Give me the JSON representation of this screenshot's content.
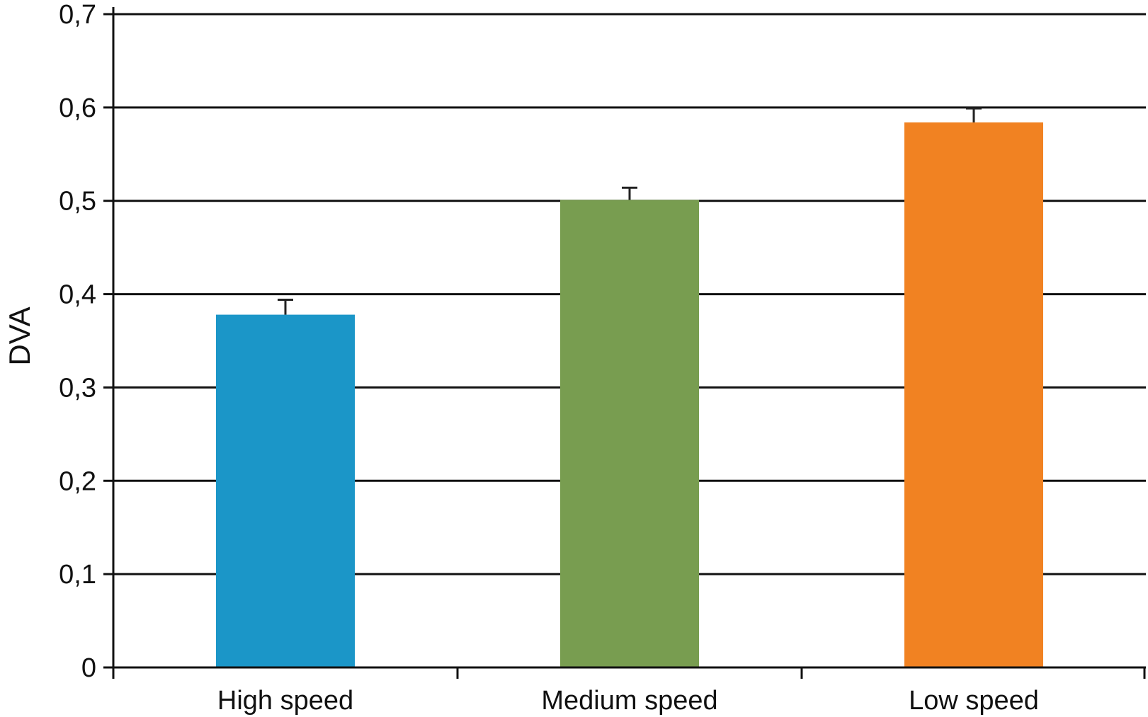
{
  "chart_data": {
    "type": "bar",
    "title": "",
    "xlabel": "",
    "ylabel": "DVA",
    "categories": [
      "High speed",
      "Medium speed",
      "Low speed"
    ],
    "values": [
      0.378,
      0.501,
      0.584
    ],
    "error_bars": [
      0.016,
      0.013,
      0.015
    ],
    "colors": [
      "#1b96c8",
      "#789d50",
      "#f18222"
    ],
    "ylim": [
      0,
      0.7
    ],
    "yticks": [
      0,
      0.1,
      0.2,
      0.3,
      0.4,
      0.5,
      0.6,
      0.7
    ],
    "ytick_labels": [
      "0",
      "0,1",
      "0,2",
      "0,3",
      "0,4",
      "0,5",
      "0,6",
      "0,7"
    ],
    "grid": true,
    "legend": "none"
  }
}
